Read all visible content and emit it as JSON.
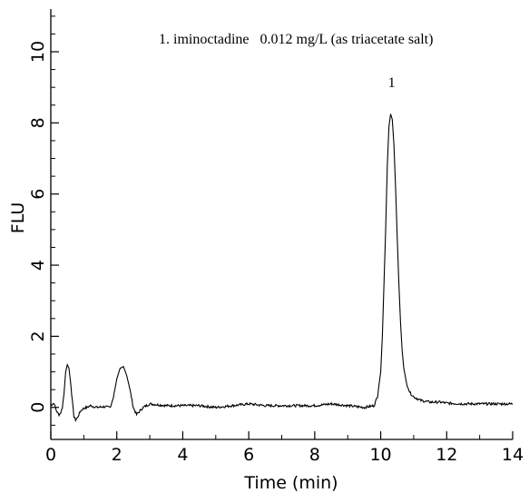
{
  "chart_data": {
    "type": "line",
    "title": "",
    "xlabel": "Time (min)",
    "ylabel": "FLU",
    "xlim": [
      0,
      14
    ],
    "ylim": [
      -0.9,
      11.2
    ],
    "x_ticks": [
      0,
      2,
      4,
      6,
      8,
      10,
      12,
      14
    ],
    "x_tick_labels": [
      "0",
      "2",
      "4",
      "6",
      "8",
      "10",
      "12",
      "14"
    ],
    "y_ticks": [
      0,
      2,
      4,
      6,
      8,
      10
    ],
    "y_tick_labels": [
      "0",
      "2",
      "4",
      "6",
      "8",
      "10"
    ],
    "grid": false,
    "legend_text": "1. iminoctadine   0.012 mg/L (as triacetate salt)",
    "annotations": [
      {
        "text": "1",
        "x": 10.33,
        "y": 9.0
      }
    ],
    "series": [
      {
        "color": "#000000",
        "x": [
          0.0,
          0.05,
          0.1,
          0.15,
          0.2,
          0.25,
          0.3,
          0.35,
          0.4,
          0.45,
          0.5,
          0.55,
          0.6,
          0.65,
          0.7,
          0.75,
          0.8,
          0.85,
          0.9,
          1.0,
          1.1,
          1.2,
          1.4,
          1.6,
          1.8,
          1.9,
          2.0,
          2.1,
          2.2,
          2.3,
          2.4,
          2.5,
          2.6,
          2.7,
          2.8,
          2.9,
          3.0,
          3.5,
          4.0,
          4.5,
          5.0,
          5.5,
          6.0,
          6.5,
          7.0,
          7.5,
          8.0,
          8.5,
          9.0,
          9.5,
          9.8,
          9.9,
          10.0,
          10.05,
          10.1,
          10.15,
          10.2,
          10.25,
          10.3,
          10.35,
          10.4,
          10.45,
          10.5,
          10.55,
          10.6,
          10.65,
          10.7,
          10.8,
          10.9,
          11.0,
          11.1,
          11.2,
          11.3,
          11.5,
          11.8,
          12.0,
          12.5,
          13.0,
          13.5,
          14.0
        ],
        "y": [
          0.05,
          0.1,
          0.12,
          -0.05,
          -0.15,
          -0.2,
          -0.15,
          0.0,
          0.4,
          1.0,
          1.2,
          1.1,
          0.7,
          0.2,
          -0.25,
          -0.35,
          -0.3,
          -0.2,
          -0.1,
          -0.02,
          0.0,
          0.05,
          0.0,
          0.02,
          0.0,
          0.3,
          0.8,
          1.1,
          1.15,
          0.9,
          0.5,
          0.0,
          -0.2,
          -0.1,
          0.0,
          0.05,
          0.1,
          0.05,
          0.05,
          0.05,
          0.0,
          0.05,
          0.1,
          0.05,
          0.05,
          0.05,
          0.05,
          0.1,
          0.05,
          0.0,
          0.05,
          0.3,
          1.0,
          2.0,
          3.5,
          5.0,
          6.8,
          7.9,
          8.25,
          8.1,
          7.4,
          6.2,
          4.8,
          3.5,
          2.4,
          1.6,
          1.1,
          0.6,
          0.4,
          0.3,
          0.25,
          0.2,
          0.18,
          0.15,
          0.15,
          0.12,
          0.1,
          0.1,
          0.1,
          0.1
        ]
      }
    ]
  }
}
